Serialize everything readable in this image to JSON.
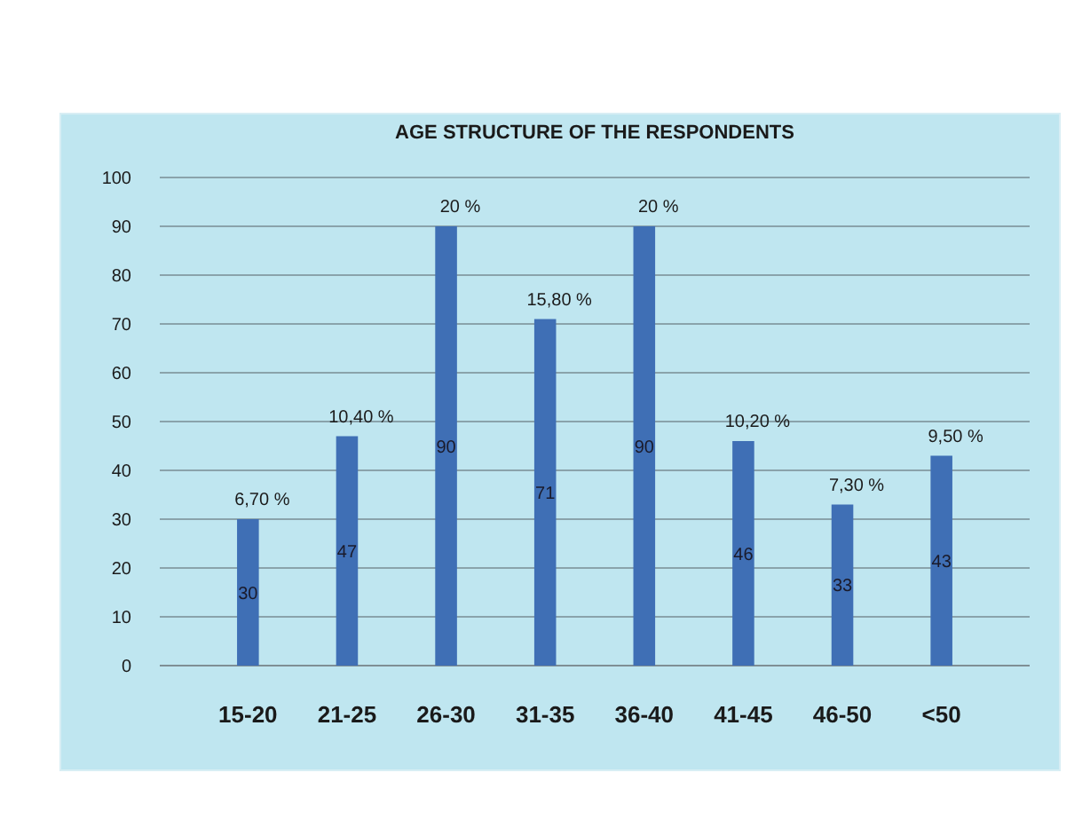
{
  "chart_data": {
    "type": "bar",
    "title": "AGE STRUCTURE OF THE RESPONDENTS",
    "categories": [
      "15-20",
      "21-25",
      "26-30",
      "31-35",
      "36-40",
      "41-45",
      "46-50",
      "<50"
    ],
    "values": [
      30,
      47,
      90,
      71,
      90,
      46,
      33,
      43
    ],
    "color": "#3f6fb5",
    "data_labels": true,
    "annotations": [
      {
        "text": "6,70 %",
        "x": "15-20",
        "y": 30
      },
      {
        "text": "10,40 %",
        "x": "21-25",
        "y": 47
      },
      {
        "text": "20 %",
        "x": "26-30",
        "y": 90
      },
      {
        "text": "15,80 %",
        "x": "31-35",
        "y": 71
      },
      {
        "text": "20 %",
        "x": "36-40",
        "y": 90
      },
      {
        "text": "10,20 %",
        "x": "41-45",
        "y": 46
      },
      {
        "text": "7,30 %",
        "x": "46-50",
        "y": 33
      },
      {
        "text": "9,50 %",
        "x": "<50",
        "y": 43
      }
    ],
    "ylim": [
      0,
      100
    ],
    "yticks": [
      0,
      10,
      20,
      30,
      40,
      50,
      60,
      70,
      80,
      90,
      100
    ],
    "grid": "y"
  }
}
